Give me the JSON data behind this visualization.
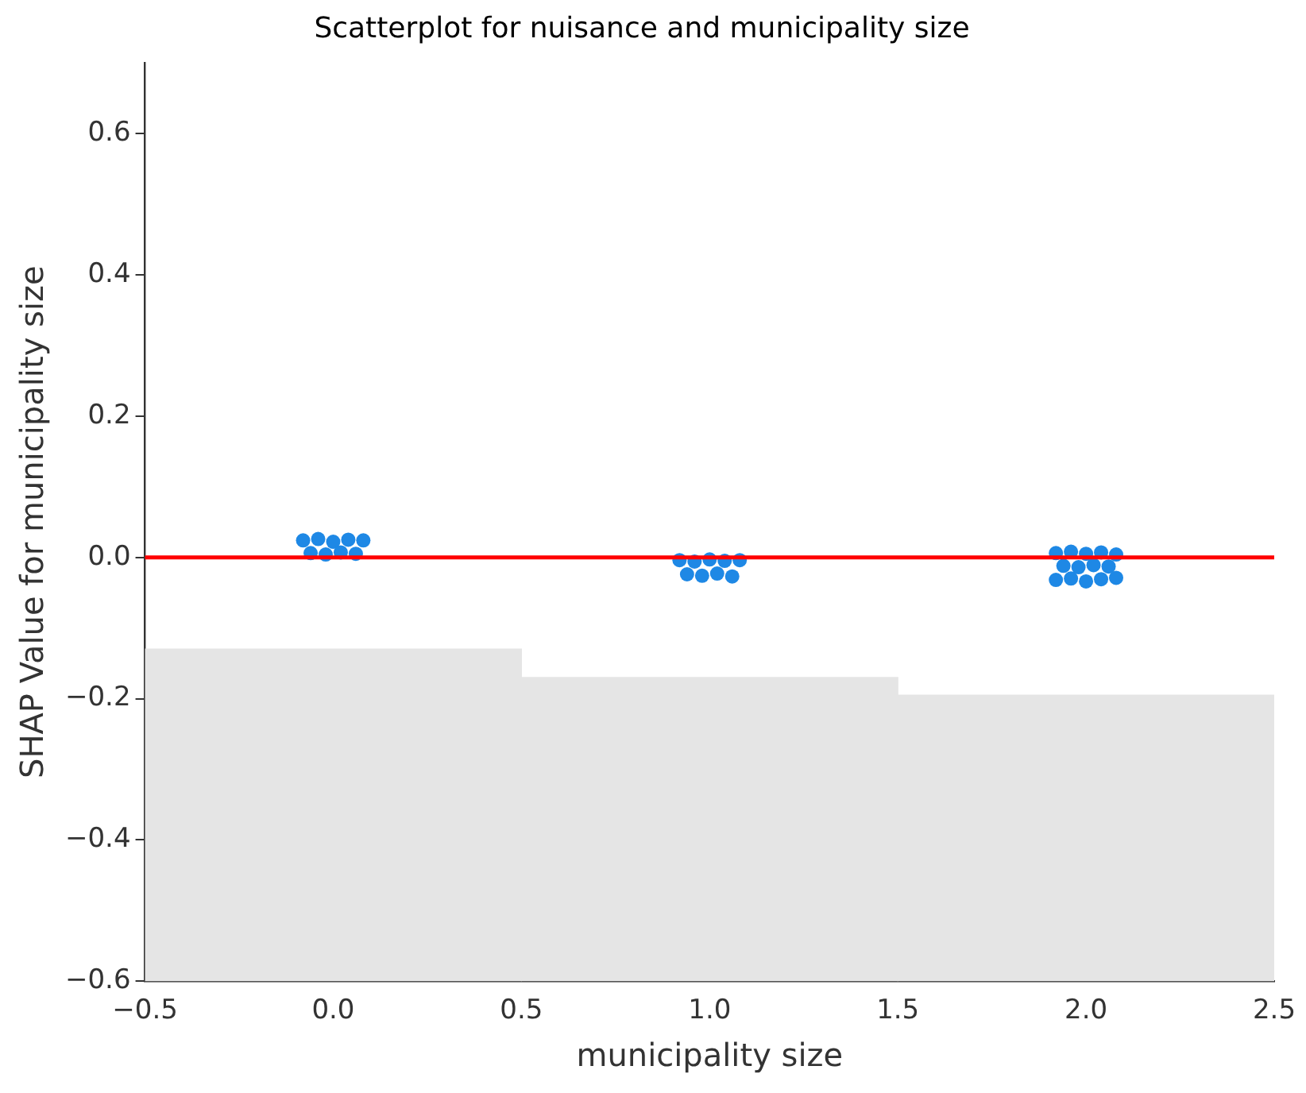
{
  "chart_data": {
    "type": "scatter",
    "title": "Scatterplot for nuisance and municipality size",
    "xlabel": "municipality size",
    "ylabel": "SHAP Value for municipality size",
    "xlim": [
      -0.5,
      2.5
    ],
    "xticks": [
      {
        "value": -0.5,
        "label": "−0.5"
      },
      {
        "value": 0,
        "label": "0.0"
      },
      {
        "value": 0.5,
        "label": "0.5"
      },
      {
        "value": 1,
        "label": "1.0"
      },
      {
        "value": 1.5,
        "label": "1.5"
      },
      {
        "value": 2,
        "label": "2.0"
      },
      {
        "value": 2.5,
        "label": "2.5"
      }
    ],
    "ylim": [
      -0.6,
      0.7
    ],
    "yticks": [
      {
        "value": -0.6,
        "label": "−0.6"
      },
      {
        "value": -0.4,
        "label": "−0.4"
      },
      {
        "value": -0.2,
        "label": "−0.2"
      },
      {
        "value": 0,
        "label": "0.0"
      },
      {
        "value": 0.2,
        "label": "0.2"
      },
      {
        "value": 0.4,
        "label": "0.4"
      },
      {
        "value": 0.6,
        "label": "0.6"
      }
    ],
    "grid": false,
    "legend": false,
    "marker": "circle",
    "ref_lines": [
      {
        "axis": "y",
        "value": 0,
        "color": "#ff0000"
      }
    ],
    "series": [
      {
        "type": "bar",
        "color": "#e5e5e5",
        "x": [
          0,
          1,
          2
        ],
        "base": [
          -0.6,
          -0.6,
          -0.6
        ],
        "values": [
          0.47,
          0.43,
          0.405
        ]
      },
      {
        "color": "#1e88e5",
        "x": [
          -0.08,
          -0.04,
          0.0,
          0.04,
          0.08,
          -0.06,
          -0.02,
          0.02,
          0.06,
          0.92,
          0.96,
          1.0,
          1.04,
          1.08,
          0.94,
          0.98,
          1.02,
          1.06,
          1.92,
          1.96,
          2.0,
          2.04,
          2.08,
          1.94,
          1.98,
          2.02,
          2.06,
          1.92,
          1.96,
          2.0,
          2.04,
          2.08
        ],
        "values": [
          0.024,
          0.026,
          0.022,
          0.025,
          0.024,
          0.006,
          0.004,
          0.007,
          0.005,
          -0.004,
          -0.006,
          -0.003,
          -0.005,
          -0.004,
          -0.024,
          -0.026,
          -0.023,
          -0.027,
          0.006,
          0.008,
          0.005,
          0.007,
          0.004,
          -0.012,
          -0.014,
          -0.011,
          -0.013,
          -0.032,
          -0.03,
          -0.034,
          -0.031,
          -0.029
        ]
      }
    ]
  }
}
